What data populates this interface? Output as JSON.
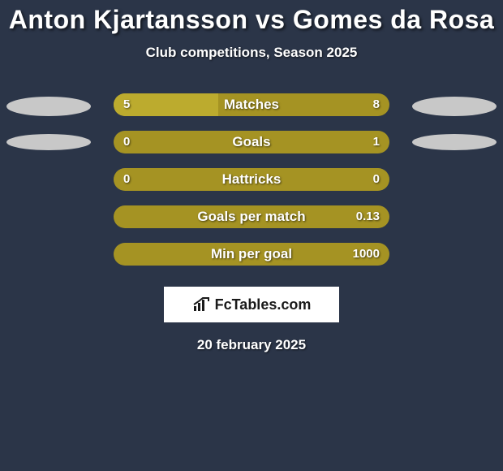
{
  "background_color": "#2b3548",
  "title": {
    "text": "Anton Kjartansson vs Gomes da Rosa",
    "fontsize": 32,
    "color": "#ffffff"
  },
  "subtitle": {
    "text": "Club competitions, Season 2025",
    "fontsize": 17,
    "color": "#ffffff"
  },
  "bar_style": {
    "track_color": "#a59323",
    "fill_color": "#bcab2e",
    "track_width": 340,
    "track_height": 28,
    "border_radius": 14,
    "label_fontsize": 17,
    "value_fontsize": 15
  },
  "ellipse_style": {
    "color": "#c8c8c8",
    "row0": {
      "width": 104,
      "height": 24
    },
    "row1": {
      "width": 104,
      "height": 20
    }
  },
  "rows": [
    {
      "label": "Matches",
      "left": "5",
      "right": "8",
      "fill_pct": 38,
      "ellipse": "row0"
    },
    {
      "label": "Goals",
      "left": "0",
      "right": "1",
      "fill_pct": 0,
      "ellipse": "row1"
    },
    {
      "label": "Hattricks",
      "left": "0",
      "right": "0",
      "fill_pct": 0,
      "ellipse": null
    },
    {
      "label": "Goals per match",
      "left": "",
      "right": "0.13",
      "fill_pct": 0,
      "ellipse": null
    },
    {
      "label": "Min per goal",
      "left": "",
      "right": "1000",
      "fill_pct": 0,
      "ellipse": null
    }
  ],
  "logo": {
    "text": "FcTables.com",
    "fontsize": 18
  },
  "date": {
    "text": "20 february 2025",
    "fontsize": 17
  }
}
